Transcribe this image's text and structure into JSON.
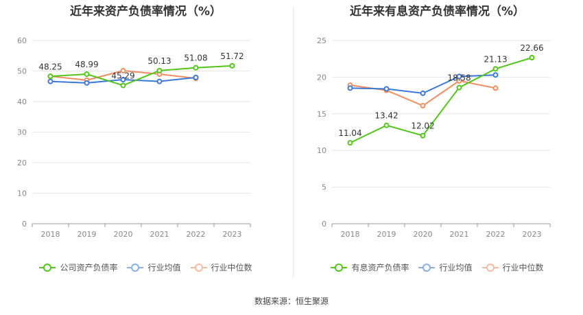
{
  "source": "数据来源：恒生聚源",
  "chart_data": [
    {
      "type": "line",
      "title": "近年来资产负债率情况（%）",
      "categories": [
        "2018",
        "2019",
        "2020",
        "2021",
        "2022",
        "2023"
      ],
      "ylim": [
        0,
        60
      ],
      "yticks": [
        0,
        10,
        20,
        30,
        40,
        50,
        60
      ],
      "grid": true,
      "legend_position": "bottom",
      "series": [
        {
          "name": "公司资产负债率",
          "color": "#52c41a",
          "values": [
            48.25,
            48.99,
            45.29,
            50.13,
            51.08,
            51.72
          ],
          "labels": [
            "48.25",
            "48.99",
            "45.29",
            "50.13",
            "51.08",
            "51.72"
          ]
        },
        {
          "name": "行业均值",
          "color": "#3b78d8",
          "values": [
            46.6,
            46.1,
            47.2,
            46.6,
            47.9,
            null
          ]
        },
        {
          "name": "行业中位数",
          "color": "#f08c5f",
          "values": [
            48.3,
            47.0,
            50.1,
            49.0,
            47.6,
            null
          ]
        }
      ]
    },
    {
      "type": "line",
      "title": "近年来有息资产负债率情况（%）",
      "categories": [
        "2018",
        "2019",
        "2020",
        "2021",
        "2022",
        "2023"
      ],
      "ylim": [
        0,
        25
      ],
      "yticks": [
        0,
        5,
        10,
        15,
        20,
        25
      ],
      "grid": true,
      "legend_position": "bottom",
      "series": [
        {
          "name": "有息资产负债率",
          "color": "#52c41a",
          "values": [
            11.04,
            13.42,
            12.02,
            18.58,
            21.13,
            22.66
          ],
          "labels": [
            "11.04",
            "13.42",
            "12.02",
            "18.58",
            "21.13",
            "22.66"
          ]
        },
        {
          "name": "行业均值",
          "color": "#3b78d8",
          "values": [
            18.5,
            18.4,
            17.8,
            20.1,
            20.3,
            null
          ]
        },
        {
          "name": "行业中位数",
          "color": "#f08c5f",
          "values": [
            18.9,
            18.2,
            16.1,
            19.5,
            18.5,
            null
          ]
        }
      ]
    }
  ]
}
